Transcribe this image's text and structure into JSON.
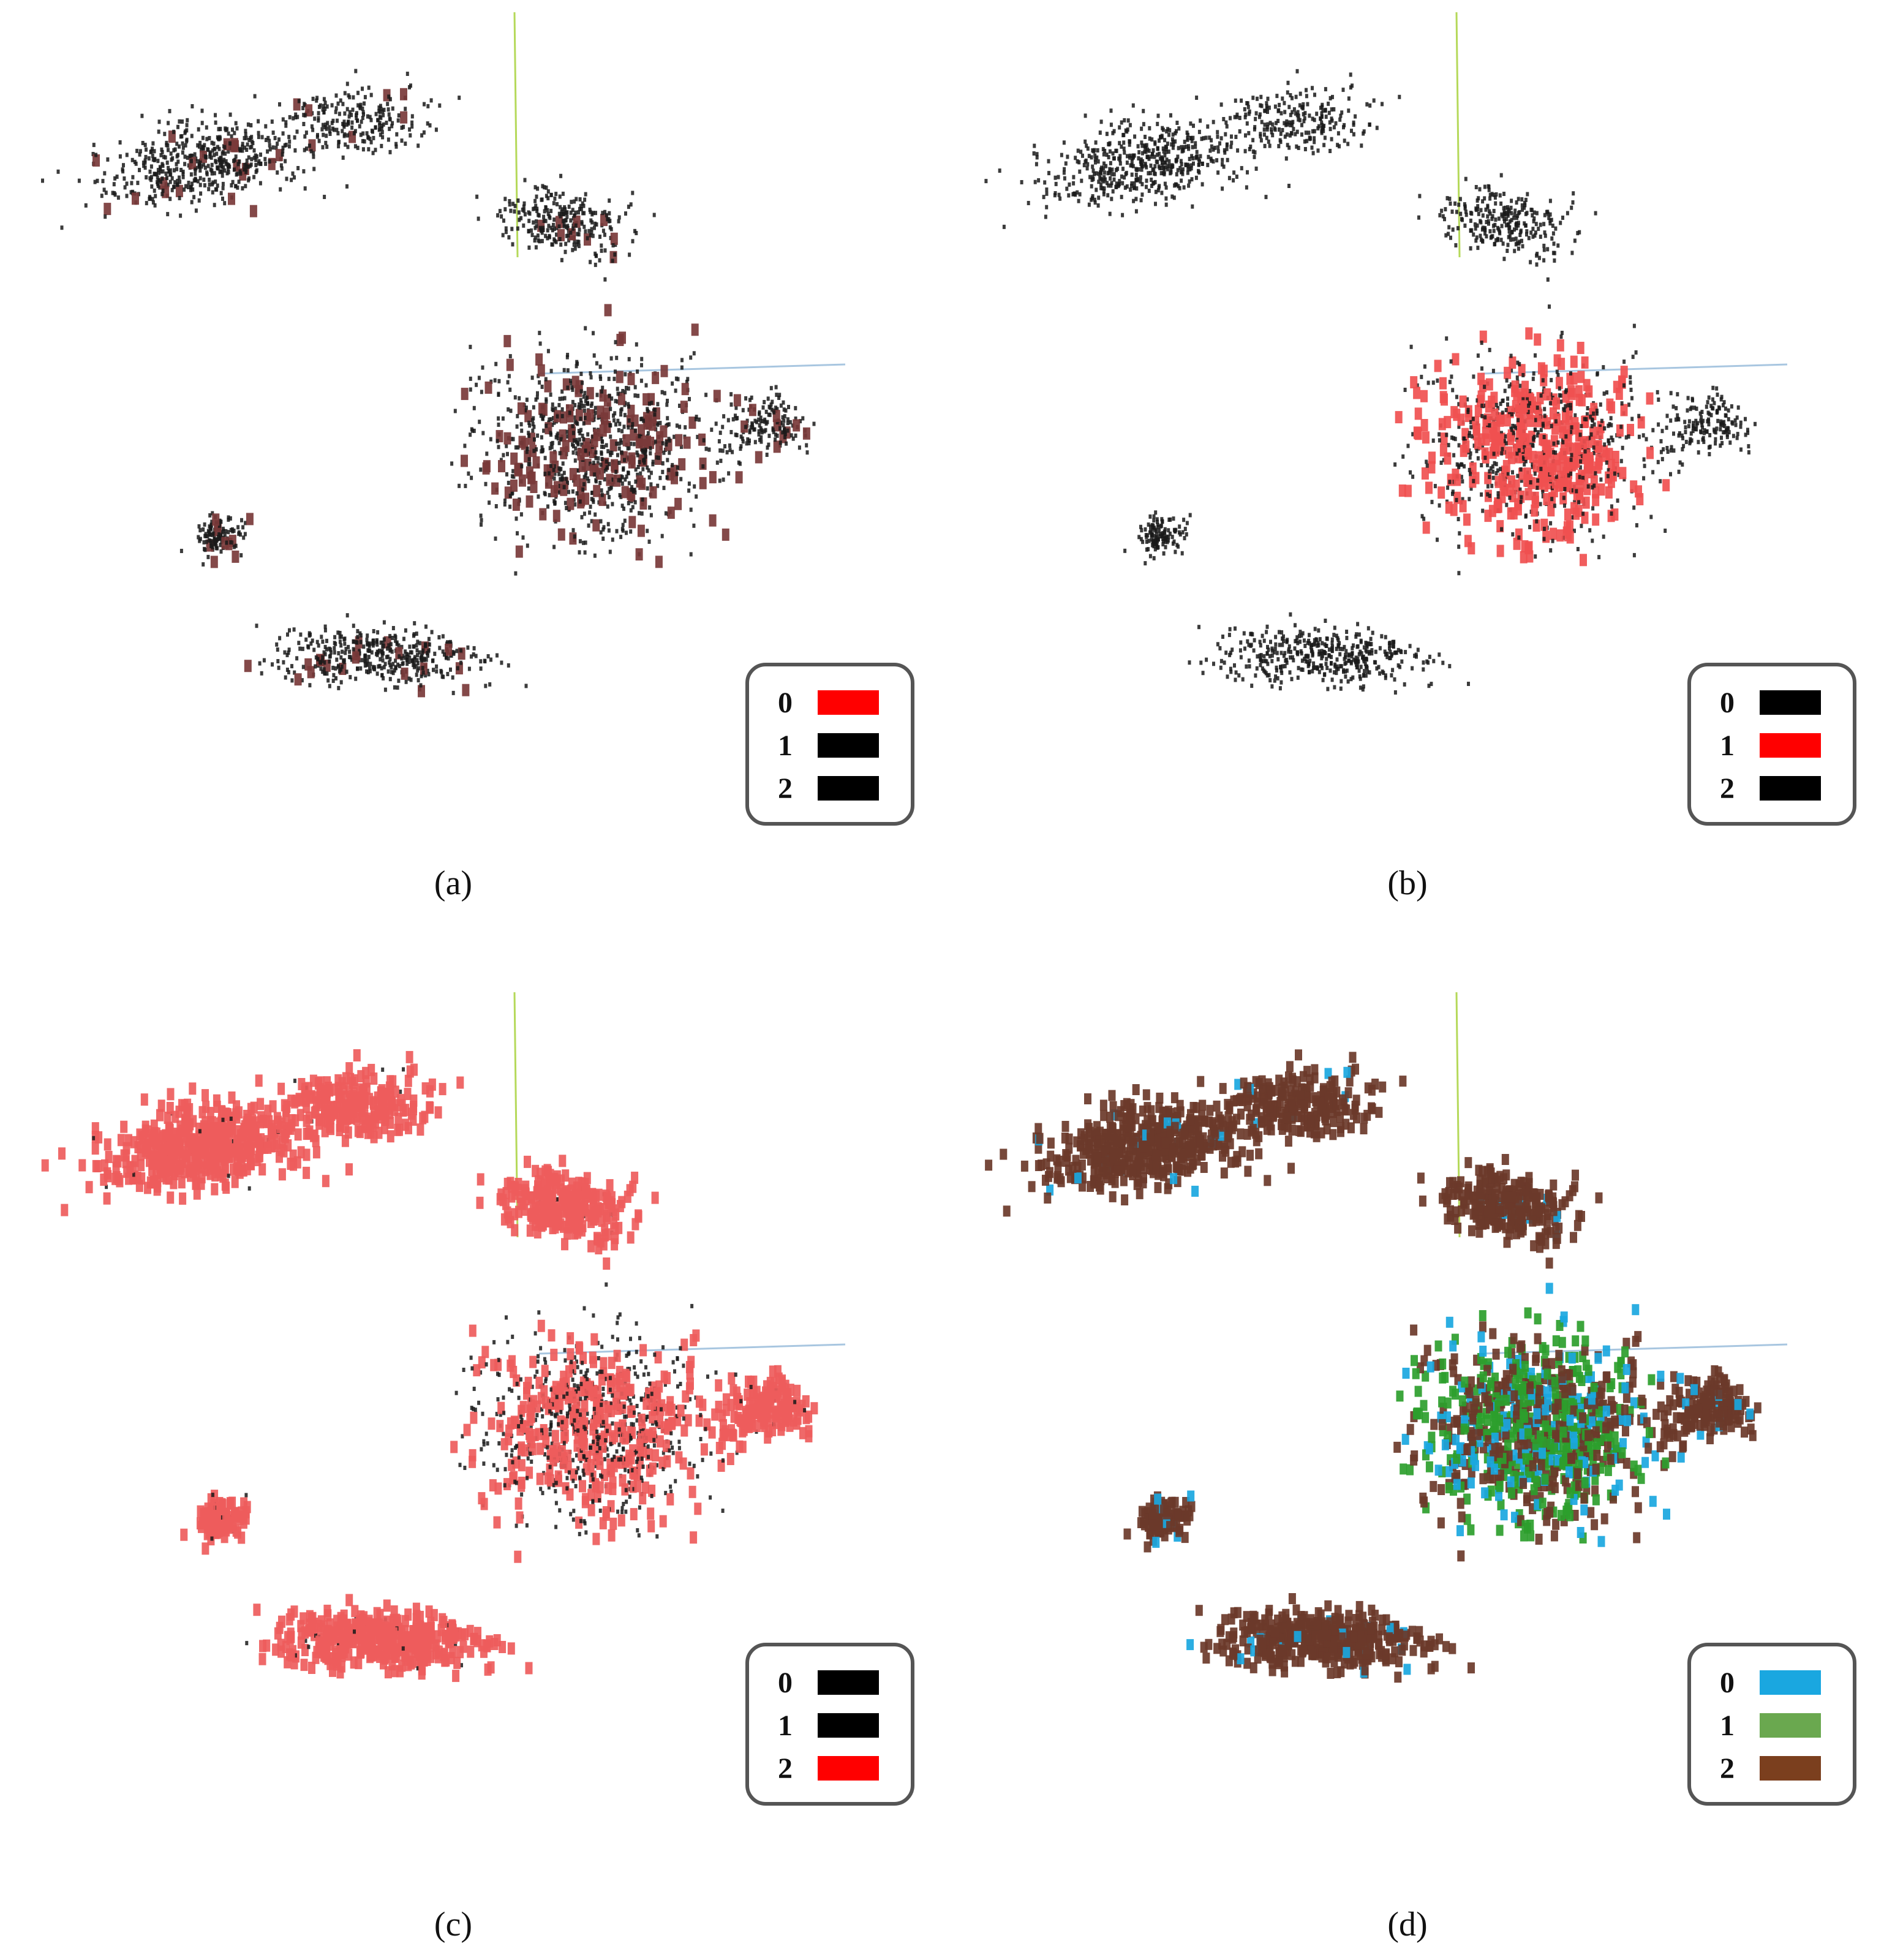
{
  "figure": {
    "panels": [
      {
        "caption": "(a)",
        "legend": [
          {
            "label": "0",
            "color": "#ff0000"
          },
          {
            "label": "1",
            "color": "#000000"
          },
          {
            "label": "2",
            "color": "#000000"
          }
        ],
        "highlight_class": "0",
        "highlight_color": "#7a3a3a",
        "other_color": "#1a1a1a"
      },
      {
        "caption": "(b)",
        "legend": [
          {
            "label": "0",
            "color": "#000000"
          },
          {
            "label": "1",
            "color": "#ff0000"
          },
          {
            "label": "2",
            "color": "#000000"
          }
        ],
        "highlight_class": "1",
        "highlight_color": "#f05050",
        "other_color": "#1a1a1a"
      },
      {
        "caption": "(c)",
        "legend": [
          {
            "label": "0",
            "color": "#000000"
          },
          {
            "label": "1",
            "color": "#000000"
          },
          {
            "label": "2",
            "color": "#ff0000"
          }
        ],
        "highlight_class": "2",
        "highlight_color": "#ee5c5c",
        "other_color": "#1a1a1a"
      },
      {
        "caption": "(d)",
        "legend": [
          {
            "label": "0",
            "color": "#1aa7e0"
          },
          {
            "label": "1",
            "color": "#6aa84f"
          },
          {
            "label": "2",
            "color": "#7b3f1e"
          }
        ],
        "highlight_class": "all",
        "class_colors": {
          "0": "#1aa7e0",
          "1": "#2d9e2d",
          "2": "#6b3a2a"
        }
      }
    ]
  },
  "chart_data": [
    {
      "type": "scatter",
      "description_classes": [
        "0",
        "1",
        "2"
      ],
      "legend": [
        "0",
        "1",
        "2"
      ],
      "highlighted": "0",
      "grid": false,
      "legend_position": "bottom-right"
    },
    {
      "type": "scatter",
      "legend": [
        "0",
        "1",
        "2"
      ],
      "highlighted": "1",
      "grid": false,
      "legend_position": "bottom-right"
    },
    {
      "type": "scatter",
      "legend": [
        "0",
        "1",
        "2"
      ],
      "highlighted": "2",
      "grid": false,
      "legend_position": "bottom-right"
    },
    {
      "type": "scatter",
      "legend": [
        "0",
        "1",
        "2"
      ],
      "highlighted": "all",
      "grid": false,
      "legend_position": "bottom-right"
    }
  ]
}
